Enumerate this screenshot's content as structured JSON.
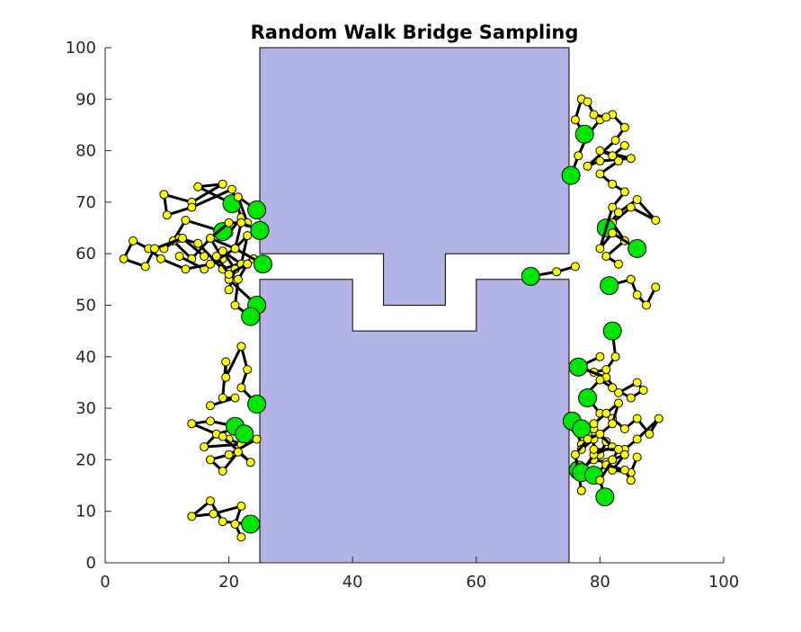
{
  "chart_data": {
    "type": "scatter",
    "title": "Random Walk Bridge Sampling",
    "xlabel": "",
    "ylabel": "",
    "xlim": [
      0,
      100
    ],
    "ylim": [
      0,
      100
    ],
    "x_ticks": [
      "0",
      "20",
      "40",
      "60",
      "80",
      "100"
    ],
    "y_ticks": [
      "0",
      "10",
      "20",
      "30",
      "40",
      "50",
      "60",
      "70",
      "80",
      "90",
      "100"
    ],
    "colors": {
      "obstacle_fill": "#b3b3e6",
      "walk_line": "#000000",
      "walk_node": "#ffff00",
      "bridge_start": "#00e600"
    },
    "obstacles": [
      {
        "name": "upper-block",
        "polygon": [
          [
            25,
            100
          ],
          [
            75,
            100
          ],
          [
            75,
            60
          ],
          [
            55,
            60
          ],
          [
            55,
            50
          ],
          [
            45,
            50
          ],
          [
            45,
            60
          ],
          [
            25,
            60
          ]
        ]
      },
      {
        "name": "lower-block",
        "polygon": [
          [
            25,
            0
          ],
          [
            75,
            0
          ],
          [
            75,
            55
          ],
          [
            60,
            55
          ],
          [
            60,
            45
          ],
          [
            40,
            45
          ],
          [
            40,
            55
          ],
          [
            25,
            55
          ]
        ]
      }
    ],
    "walks": [
      {
        "start": [
          20.5,
          69.7
        ],
        "points": [
          [
            20.5,
            69.7
          ],
          [
            15,
            73
          ],
          [
            19,
            73.5
          ],
          [
            14,
            70
          ],
          [
            9.5,
            71.5
          ],
          [
            10,
            67.5
          ],
          [
            14,
            69
          ],
          [
            20.5,
            72.5
          ],
          [
            22,
            67
          ],
          [
            20,
            64
          ]
        ]
      },
      {
        "start": [
          19,
          64.3
        ],
        "points": [
          [
            19,
            64.3
          ],
          [
            13,
            66.5
          ],
          [
            11,
            62.5
          ],
          [
            14,
            59
          ],
          [
            17,
            63
          ],
          [
            21,
            61
          ],
          [
            23,
            63.5
          ],
          [
            22,
            58
          ]
        ]
      },
      {
        "start": [
          24.5,
          68.5
        ],
        "points": [
          [
            24.5,
            68.5
          ],
          [
            21.5,
            71
          ],
          [
            23,
            66
          ],
          [
            20,
            66
          ],
          [
            17,
            63
          ],
          [
            19,
            59
          ],
          [
            16,
            57
          ],
          [
            12,
            59.5
          ]
        ]
      },
      {
        "start": [
          25,
          64.5
        ],
        "points": [
          [
            25,
            64.5
          ],
          [
            22,
            66
          ],
          [
            21,
            61
          ],
          [
            24,
            59
          ],
          [
            19,
            57
          ],
          [
            15,
            62
          ],
          [
            12,
            63
          ],
          [
            9.5,
            61
          ]
        ]
      },
      {
        "start": [
          25.5,
          58
        ],
        "points": [
          [
            25.5,
            58
          ],
          [
            21,
            61
          ],
          [
            17,
            58
          ],
          [
            13,
            57
          ],
          [
            9,
            59
          ],
          [
            7,
            61
          ],
          [
            4.5,
            62.5
          ],
          [
            3,
            59
          ],
          [
            6.5,
            57.5
          ],
          [
            8,
            61
          ],
          [
            12.5,
            63
          ],
          [
            16,
            59.5
          ]
        ]
      },
      {
        "start": [
          24.5,
          50
        ],
        "points": [
          [
            24.5,
            50
          ],
          [
            20,
            55
          ],
          [
            22,
            58
          ],
          [
            19,
            60.5
          ],
          [
            21,
            57
          ],
          [
            20,
            53
          ]
        ]
      },
      {
        "start": [
          23.5,
          47.8
        ],
        "points": [
          [
            23.5,
            47.8
          ],
          [
            21,
            50
          ],
          [
            21.5,
            55
          ],
          [
            23,
            58
          ],
          [
            20,
            56
          ],
          [
            18,
            59.5
          ]
        ]
      },
      {
        "start": [
          24.5,
          30.8
        ],
        "points": [
          [
            24.5,
            30.8
          ],
          [
            22,
            34
          ],
          [
            23,
            37.5
          ],
          [
            22,
            42
          ],
          [
            19.5,
            36
          ],
          [
            19.5,
            39
          ],
          [
            19,
            32
          ],
          [
            21,
            32
          ],
          [
            17,
            30.5
          ]
        ]
      },
      {
        "start": [
          21,
          26.5
        ],
        "points": [
          [
            21,
            26.5
          ],
          [
            17,
            27.5
          ],
          [
            14,
            27
          ],
          [
            20,
            24
          ],
          [
            22,
            23
          ],
          [
            16,
            22.5
          ],
          [
            18,
            25
          ],
          [
            21,
            26
          ]
        ]
      },
      {
        "start": [
          22.5,
          25
        ],
        "points": [
          [
            22.5,
            25
          ],
          [
            24.5,
            24
          ],
          [
            20,
            21
          ],
          [
            17,
            20
          ],
          [
            19,
            17.8
          ],
          [
            21.5,
            21.5
          ],
          [
            23.5,
            19.5
          ],
          [
            19,
            24.5
          ]
        ]
      },
      {
        "start": [
          23.5,
          7.5
        ],
        "points": [
          [
            23.5,
            7.5
          ],
          [
            19,
            8
          ],
          [
            17,
            12
          ],
          [
            14,
            9
          ],
          [
            17.5,
            9.5
          ],
          [
            22,
            11
          ],
          [
            21,
            7.5
          ],
          [
            22,
            5
          ]
        ]
      },
      {
        "start": [
          68.8,
          55.6
        ],
        "points": [
          [
            68.8,
            55.6
          ],
          [
            73,
            56.5
          ],
          [
            76,
            57.5
          ]
        ]
      },
      {
        "start": [
          75.3,
          75.2
        ],
        "points": [
          [
            75.3,
            75.2
          ],
          [
            76.5,
            79
          ],
          [
            78,
            83
          ],
          [
            80,
            86
          ],
          [
            82,
            87
          ],
          [
            84,
            84.5
          ],
          [
            82.5,
            82
          ],
          [
            78,
            77
          ],
          [
            80,
            78
          ],
          [
            85,
            78.5
          ],
          [
            80,
            80
          ],
          [
            82,
            79
          ],
          [
            84,
            81
          ]
        ]
      },
      {
        "start": [
          77.5,
          83.2
        ],
        "points": [
          [
            77.5,
            83.2
          ],
          [
            76,
            86
          ],
          [
            77,
            90
          ],
          [
            78,
            89.5
          ],
          [
            79,
            87
          ],
          [
            81,
            86.5
          ]
        ]
      },
      {
        "start": [
          81,
          65
        ],
        "points": [
          [
            81,
            65
          ],
          [
            83,
            68
          ],
          [
            86,
            70.5
          ],
          [
            89,
            66.5
          ],
          [
            85,
            69
          ],
          [
            82,
            66
          ],
          [
            84,
            62.5
          ],
          [
            81,
            59.5
          ],
          [
            83,
            58
          ]
        ]
      },
      {
        "start": [
          86,
          61
        ],
        "points": [
          [
            86,
            61
          ],
          [
            82,
            64
          ],
          [
            80,
            61
          ],
          [
            82,
            69
          ],
          [
            84,
            72
          ],
          [
            82,
            73.5
          ],
          [
            80,
            75.5
          ],
          [
            83,
            78
          ]
        ]
      },
      {
        "start": [
          81.5,
          53.8
        ],
        "points": [
          [
            81.5,
            53.8
          ],
          [
            85,
            55
          ],
          [
            86,
            52
          ],
          [
            87.5,
            50
          ],
          [
            89,
            53.5
          ]
        ]
      },
      {
        "start": [
          82,
          45
        ],
        "points": [
          [
            82,
            45
          ],
          [
            82.5,
            40
          ],
          [
            81,
            37.5
          ],
          [
            79,
            37
          ],
          [
            76.5,
            38
          ],
          [
            80,
            40
          ]
        ]
      },
      {
        "start": [
          76.5,
          38
        ],
        "points": [
          [
            76.5,
            38
          ],
          [
            81,
            36
          ],
          [
            83,
            33
          ],
          [
            86,
            35
          ],
          [
            87,
            33.5
          ],
          [
            85,
            32
          ],
          [
            82,
            34
          ],
          [
            80,
            35.5
          ],
          [
            78,
            33
          ]
        ]
      },
      {
        "start": [
          78,
          32
        ],
        "points": [
          [
            78,
            32
          ],
          [
            80,
            29
          ],
          [
            82,
            28
          ],
          [
            84,
            26
          ],
          [
            86,
            28
          ],
          [
            88,
            25
          ],
          [
            89.5,
            28
          ],
          [
            86,
            24
          ],
          [
            84,
            22
          ]
        ]
      },
      {
        "start": [
          75.5,
          27.5
        ],
        "points": [
          [
            75.5,
            27.5
          ],
          [
            77,
            23
          ],
          [
            79,
            26
          ],
          [
            81,
            23.5
          ],
          [
            80,
            21
          ],
          [
            78,
            25
          ],
          [
            76,
            26
          ]
        ]
      },
      {
        "start": [
          77,
          26
        ],
        "points": [
          [
            77,
            26
          ],
          [
            79,
            27
          ],
          [
            81,
            29
          ],
          [
            83,
            31
          ],
          [
            82,
            27
          ],
          [
            79,
            24
          ],
          [
            77,
            22
          ]
        ]
      },
      {
        "start": [
          76.5,
          18
        ],
        "points": [
          [
            76.5,
            18
          ],
          [
            79,
            20
          ],
          [
            81,
            19.5
          ],
          [
            84,
            21
          ],
          [
            82,
            18
          ],
          [
            85,
            17.5
          ],
          [
            86,
            20.5
          ]
        ]
      },
      {
        "start": [
          77,
          17.5
        ],
        "points": [
          [
            77,
            17.5
          ],
          [
            79,
            21
          ],
          [
            82,
            22.5
          ],
          [
            80,
            25
          ],
          [
            78,
            24
          ],
          [
            76,
            21
          ],
          [
            77,
            14
          ]
        ]
      },
      {
        "start": [
          79,
          17
        ],
        "points": [
          [
            79,
            17
          ],
          [
            81,
            19
          ],
          [
            84,
            18
          ],
          [
            85,
            16
          ]
        ]
      },
      {
        "start": [
          80.8,
          12.8
        ],
        "points": [
          [
            80.8,
            12.8
          ],
          [
            80,
            16
          ],
          [
            82,
            20
          ],
          [
            83,
            22
          ],
          [
            79,
            22
          ]
        ]
      }
    ]
  }
}
